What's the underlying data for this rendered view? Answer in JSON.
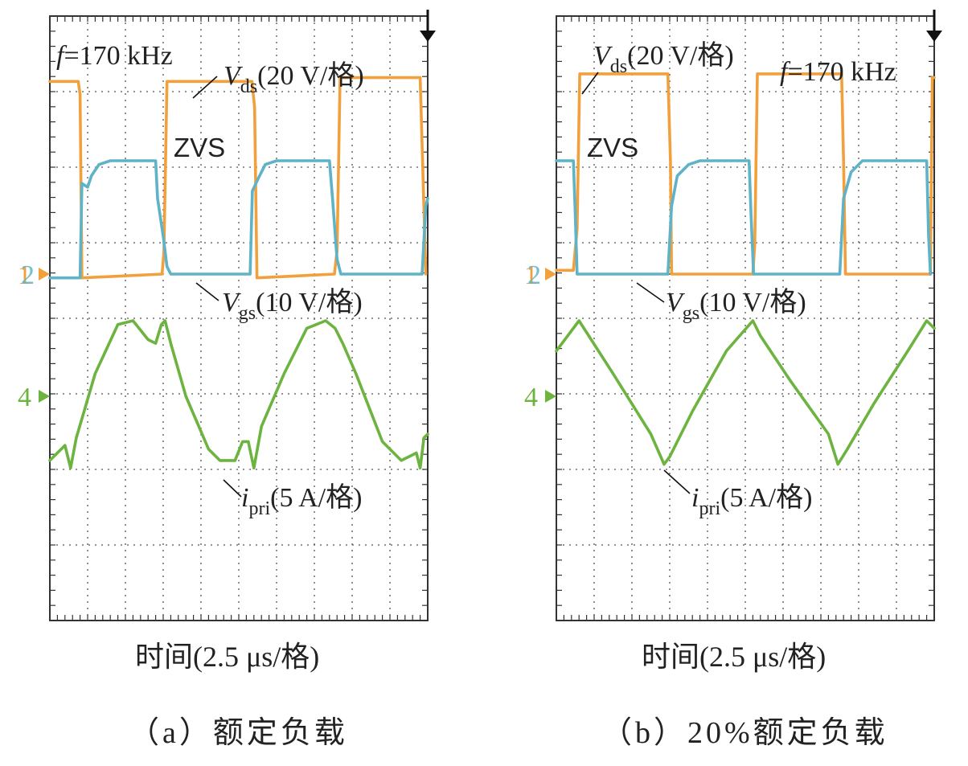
{
  "chart_data": [
    {
      "type": "line",
      "id": "a",
      "title": "（a）额定负载",
      "xlabel": "时间(2.5 μs/格)",
      "freq_label": "f=170 kHz",
      "zvs_label": "ZVS",
      "xdiv": 10,
      "ydiv": 8,
      "series": [
        {
          "name": "Vds",
          "label_main": "V",
          "label_sub": "ds",
          "label_scale": "(20 V/格)",
          "marker": "1",
          "color": "#f2a03c",
          "points": [
            [
              0,
              2.55
            ],
            [
              0.75,
              2.55
            ],
            [
              0.8,
              2.38
            ],
            [
              0.85,
              -0.05
            ],
            [
              2.97,
              0
            ],
            [
              3.02,
              0.3
            ],
            [
              3.1,
              2.55
            ],
            [
              5.35,
              2.55
            ],
            [
              5.42,
              2.2
            ],
            [
              5.48,
              -0.05
            ],
            [
              7.53,
              0
            ],
            [
              7.6,
              0.3
            ],
            [
              7.68,
              2.6
            ],
            [
              9.8,
              2.6
            ],
            [
              9.88,
              1.2
            ],
            [
              9.95,
              0
            ]
          ]
        },
        {
          "name": "Vgs",
          "label_main": "V",
          "label_sub": "gs",
          "label_scale": "(10 V/格)",
          "marker": "2",
          "color": "#5fb3c6",
          "points": [
            [
              0,
              -0.05
            ],
            [
              0.8,
              -0.05
            ],
            [
              0.85,
              1.2
            ],
            [
              1.0,
              1.15
            ],
            [
              1.1,
              1.3
            ],
            [
              1.3,
              1.45
            ],
            [
              1.6,
              1.5
            ],
            [
              2.8,
              1.5
            ],
            [
              2.85,
              1.0
            ],
            [
              3.0,
              0.5
            ],
            [
              3.1,
              0.1
            ],
            [
              3.2,
              0
            ],
            [
              5.3,
              0
            ],
            [
              5.36,
              1.1
            ],
            [
              5.5,
              1.25
            ],
            [
              5.7,
              1.45
            ],
            [
              6.0,
              1.5
            ],
            [
              7.4,
              1.5
            ],
            [
              7.48,
              1.0
            ],
            [
              7.6,
              0.2
            ],
            [
              7.7,
              0
            ],
            [
              9.85,
              0
            ],
            [
              9.95,
              0.9
            ],
            [
              10,
              1.0
            ]
          ]
        },
        {
          "name": "ipri",
          "label_main": "i",
          "label_sub": "pri",
          "label_scale": "(5 A/格)",
          "marker": "4",
          "color": "#6db33f",
          "points": [
            [
              0,
              -0.85
            ],
            [
              0.4,
              -0.65
            ],
            [
              0.55,
              -0.95
            ],
            [
              0.7,
              -0.55
            ],
            [
              1.2,
              0.3
            ],
            [
              1.8,
              0.95
            ],
            [
              2.2,
              1.0
            ],
            [
              2.6,
              0.75
            ],
            [
              2.8,
              0.7
            ],
            [
              2.95,
              0.95
            ],
            [
              3.05,
              1.0
            ],
            [
              3.2,
              0.7
            ],
            [
              3.6,
              0
            ],
            [
              4.2,
              -0.7
            ],
            [
              4.5,
              -0.85
            ],
            [
              4.9,
              -0.85
            ],
            [
              5.1,
              -0.6
            ],
            [
              5.25,
              -0.6
            ],
            [
              5.4,
              -0.95
            ],
            [
              5.6,
              -0.4
            ],
            [
              6.2,
              0.3
            ],
            [
              6.8,
              0.9
            ],
            [
              7.3,
              1.0
            ],
            [
              7.55,
              0.9
            ],
            [
              7.75,
              0.7
            ],
            [
              8.1,
              0.3
            ],
            [
              8.8,
              -0.6
            ],
            [
              9.3,
              -0.85
            ],
            [
              9.7,
              -0.75
            ],
            [
              9.8,
              -0.95
            ],
            [
              9.9,
              -0.55
            ],
            [
              10,
              -0.5
            ]
          ]
        }
      ]
    },
    {
      "type": "line",
      "id": "b",
      "title": "（b）20%额定负载",
      "xlabel": "时间(2.5 μs/格)",
      "freq_label": "f=170 kHz",
      "zvs_label": "ZVS",
      "xdiv": 10,
      "ydiv": 8,
      "series": [
        {
          "name": "Vds",
          "label_main": "V",
          "label_sub": "ds",
          "label_scale": "(20 V/格)",
          "marker": "1",
          "color": "#f2a03c",
          "points": [
            [
              0,
              0.05
            ],
            [
              0.45,
              0.05
            ],
            [
              0.55,
              0.6
            ],
            [
              0.62,
              2.65
            ],
            [
              2.95,
              2.65
            ],
            [
              3.02,
              1.5
            ],
            [
              3.05,
              0
            ],
            [
              5.2,
              0
            ],
            [
              5.25,
              0.4
            ],
            [
              5.32,
              2.65
            ],
            [
              7.55,
              2.65
            ],
            [
              7.6,
              1.5
            ],
            [
              7.65,
              0
            ],
            [
              9.9,
              0
            ],
            [
              9.95,
              2.6
            ],
            [
              10,
              2.6
            ]
          ]
        },
        {
          "name": "Vgs",
          "label_main": "V",
          "label_sub": "gs",
          "label_scale": "(10 V/格)",
          "marker": "2",
          "color": "#5fb3c6",
          "points": [
            [
              0,
              1.5
            ],
            [
              0.45,
              1.5
            ],
            [
              0.5,
              0.8
            ],
            [
              0.55,
              0
            ],
            [
              2.95,
              0
            ],
            [
              3.05,
              0.9
            ],
            [
              3.2,
              1.3
            ],
            [
              3.5,
              1.45
            ],
            [
              3.8,
              1.5
            ],
            [
              5.1,
              1.5
            ],
            [
              5.15,
              0.8
            ],
            [
              5.22,
              0
            ],
            [
              7.5,
              0
            ],
            [
              7.6,
              1.0
            ],
            [
              7.8,
              1.35
            ],
            [
              8.1,
              1.5
            ],
            [
              9.8,
              1.5
            ],
            [
              9.85,
              0.5
            ],
            [
              9.9,
              0
            ]
          ]
        },
        {
          "name": "ipri",
          "label_main": "i",
          "label_sub": "pri",
          "label_scale": "(5 A/格)",
          "marker": "4",
          "color": "#6db33f",
          "points": [
            [
              0,
              0.6
            ],
            [
              0.6,
              1.0
            ],
            [
              1.5,
              0.3
            ],
            [
              2.5,
              -0.5
            ],
            [
              2.85,
              -0.9
            ],
            [
              3.0,
              -0.8
            ],
            [
              3.6,
              -0.2
            ],
            [
              4.5,
              0.6
            ],
            [
              5.2,
              1.0
            ],
            [
              5.4,
              0.8
            ],
            [
              6.2,
              0.2
            ],
            [
              7.2,
              -0.5
            ],
            [
              7.45,
              -0.9
            ],
            [
              7.7,
              -0.7
            ],
            [
              8.4,
              -0.1
            ],
            [
              9.3,
              0.6
            ],
            [
              9.8,
              1.0
            ],
            [
              10,
              0.9
            ]
          ]
        }
      ]
    }
  ]
}
